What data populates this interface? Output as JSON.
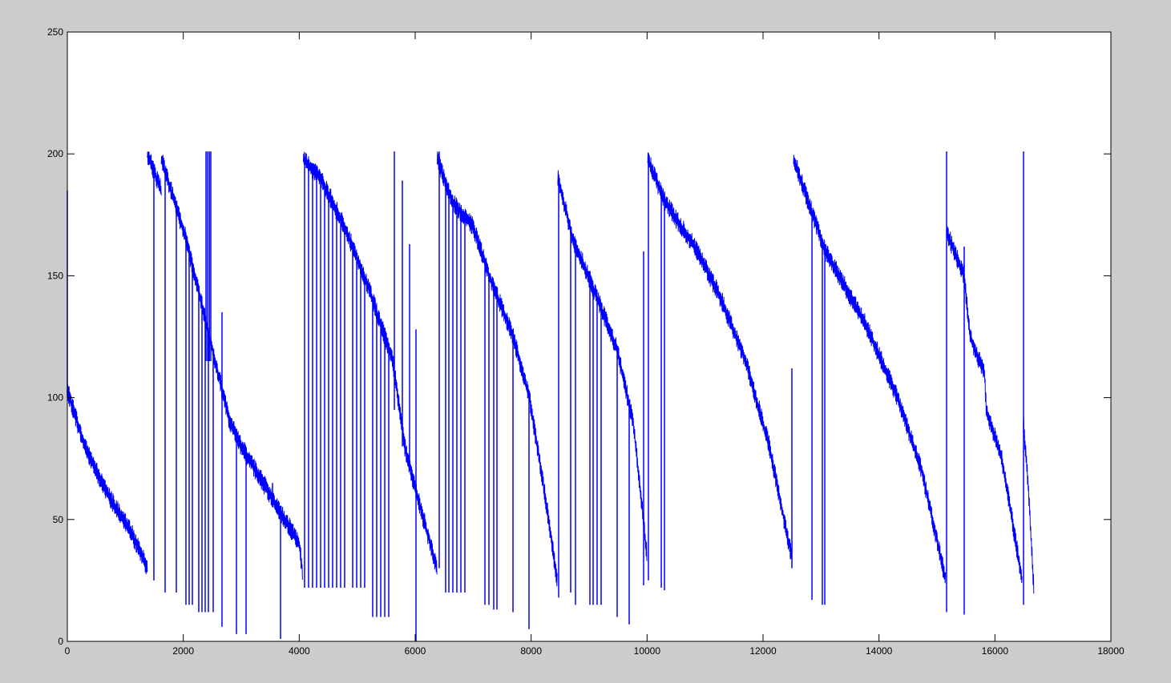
{
  "chart_data": {
    "type": "line",
    "title": "",
    "xlabel": "",
    "ylabel": "",
    "xlim": [
      0,
      18000
    ],
    "ylim": [
      0,
      250
    ],
    "grid": false,
    "legend": "none",
    "line_color": "#0000ff",
    "xticks": [
      "0",
      "2000",
      "4000",
      "6000",
      "8000",
      "10000",
      "12000",
      "14000",
      "16000",
      "18000"
    ],
    "yticks": [
      "0",
      "50",
      "100",
      "150",
      "200",
      "250"
    ],
    "band_amplitude": 8,
    "segments": [
      {
        "x": [
          0,
          300,
          700,
          1100,
          1380
        ],
        "y": [
          103,
          80,
          60,
          45,
          30
        ]
      },
      {
        "x": [
          1380,
          1620
        ],
        "y": [
          200,
          185
        ]
      },
      {
        "x": [
          1620,
          2050,
          2200,
          2400,
          2600,
          2800,
          3000,
          3500,
          4000,
          4060
        ],
        "y": [
          198,
          165,
          150,
          130,
          110,
          90,
          80,
          60,
          40,
          28
        ]
      },
      {
        "x": [
          4070,
          4370,
          4785,
          5200,
          5615,
          5820,
          6030,
          6375
        ],
        "y": [
          198,
          190,
          170,
          145,
          115,
          80,
          60,
          30
        ]
      },
      {
        "x": [
          6380,
          6650,
          7000,
          7275,
          7690,
          7970,
          8240,
          8450
        ],
        "y": [
          198,
          180,
          170,
          150,
          125,
          100,
          60,
          25
        ]
      },
      {
        "x": [
          8460,
          8720,
          9070,
          9480,
          9760,
          10000
        ],
        "y": [
          190,
          165,
          145,
          120,
          90,
          35
        ]
      },
      {
        "x": [
          10010,
          10315,
          10870,
          11285,
          11700,
          12110,
          12490
        ],
        "y": [
          198,
          180,
          160,
          140,
          115,
          80,
          35
        ]
      },
      {
        "x": [
          12525,
          13080,
          13770,
          14320,
          14740,
          15150
        ],
        "y": [
          198,
          160,
          130,
          100,
          70,
          25
        ]
      },
      {
        "x": [
          15165,
          15470,
          15570,
          15820,
          15850,
          16120,
          16470
        ],
        "y": [
          168,
          150,
          125,
          110,
          95,
          75,
          25
        ]
      },
      {
        "x": [
          16490,
          16570,
          16670
        ],
        "y": [
          90,
          65,
          22
        ]
      }
    ],
    "spikes": [
      {
        "x": 0,
        "y_min": 100,
        "y_max": 185
      },
      {
        "x": 1493,
        "y_min": 25
      },
      {
        "x": 1687,
        "y_min": 20
      },
      {
        "x": 1880,
        "y_min": 20
      },
      {
        "x": 2046,
        "y_min": 15
      },
      {
        "x": 2101,
        "y_min": 15
      },
      {
        "x": 2157,
        "y_min": 15
      },
      {
        "x": 2267,
        "y_min": 12
      },
      {
        "x": 2323,
        "y_min": 12
      },
      {
        "x": 2378,
        "y_min": 12
      },
      {
        "x": 2433,
        "y_min": 12
      },
      {
        "x": 2516,
        "y_min": 12
      },
      {
        "x": 2392,
        "y_min": 115,
        "y_max": 201
      },
      {
        "x": 2420,
        "y_min": 115,
        "y_max": 201
      },
      {
        "x": 2450,
        "y_min": 115,
        "y_max": 201
      },
      {
        "x": 2475,
        "y_min": 115,
        "y_max": 201
      },
      {
        "x": 2668,
        "y_min": 6,
        "y_max": 135
      },
      {
        "x": 2917,
        "y_min": 3
      },
      {
        "x": 3083,
        "y_min": 3
      },
      {
        "x": 3539,
        "y_min": 55,
        "y_max": 65
      },
      {
        "x": 3677,
        "y_min": 1
      },
      {
        "x": 4092,
        "y_min": 22
      },
      {
        "x": 4161,
        "y_min": 22
      },
      {
        "x": 4230,
        "y_min": 22
      },
      {
        "x": 4300,
        "y_min": 22
      },
      {
        "x": 4369,
        "y_min": 22
      },
      {
        "x": 4438,
        "y_min": 22
      },
      {
        "x": 4507,
        "y_min": 22
      },
      {
        "x": 4576,
        "y_min": 22
      },
      {
        "x": 4645,
        "y_min": 22
      },
      {
        "x": 4714,
        "y_min": 22
      },
      {
        "x": 4783,
        "y_min": 22
      },
      {
        "x": 4922,
        "y_min": 22
      },
      {
        "x": 4991,
        "y_min": 22
      },
      {
        "x": 5060,
        "y_min": 22
      },
      {
        "x": 5129,
        "y_min": 22
      },
      {
        "x": 5267,
        "y_min": 10
      },
      {
        "x": 5336,
        "y_min": 10
      },
      {
        "x": 5406,
        "y_min": 10
      },
      {
        "x": 5475,
        "y_min": 10
      },
      {
        "x": 5544,
        "y_min": 10
      },
      {
        "x": 5641,
        "y_min": 95,
        "y_max": 201
      },
      {
        "x": 5779,
        "y_min": 80,
        "y_max": 189
      },
      {
        "x": 5903,
        "y_min": 70,
        "y_max": 163
      },
      {
        "x": 6014,
        "y_min": 0,
        "y_max": 128
      },
      {
        "x": 6415,
        "y_min": 30,
        "y_max": 201
      },
      {
        "x": 6525,
        "y_min": 20
      },
      {
        "x": 6581,
        "y_min": 20
      },
      {
        "x": 6650,
        "y_min": 20
      },
      {
        "x": 6719,
        "y_min": 20
      },
      {
        "x": 6788,
        "y_min": 20
      },
      {
        "x": 6857,
        "y_min": 20
      },
      {
        "x": 7203,
        "y_min": 15
      },
      {
        "x": 7272,
        "y_min": 15
      },
      {
        "x": 7355,
        "y_min": 13
      },
      {
        "x": 7410,
        "y_min": 13
      },
      {
        "x": 7687,
        "y_min": 12
      },
      {
        "x": 7963,
        "y_min": 5
      },
      {
        "x": 8475,
        "y_min": 18
      },
      {
        "x": 8682,
        "y_min": 20
      },
      {
        "x": 8765,
        "y_min": 15
      },
      {
        "x": 9014,
        "y_min": 15
      },
      {
        "x": 9069,
        "y_min": 15
      },
      {
        "x": 9138,
        "y_min": 15
      },
      {
        "x": 9207,
        "y_min": 15
      },
      {
        "x": 9484,
        "y_min": 10
      },
      {
        "x": 9691,
        "y_min": 7
      },
      {
        "x": 9940,
        "y_min": 23,
        "y_max": 160
      },
      {
        "x": 10023,
        "y_min": 25
      },
      {
        "x": 10245,
        "y_min": 22
      },
      {
        "x": 10300,
        "y_min": 21
      },
      {
        "x": 12498,
        "y_min": 30,
        "y_max": 112
      },
      {
        "x": 12844,
        "y_min": 17
      },
      {
        "x": 13023,
        "y_min": 15
      },
      {
        "x": 13065,
        "y_min": 15
      },
      {
        "x": 15166,
        "y_min": 12,
        "y_max": 201
      },
      {
        "x": 15470,
        "y_min": 11,
        "y_max": 162
      },
      {
        "x": 16493,
        "y_min": 15,
        "y_max": 201
      }
    ]
  }
}
